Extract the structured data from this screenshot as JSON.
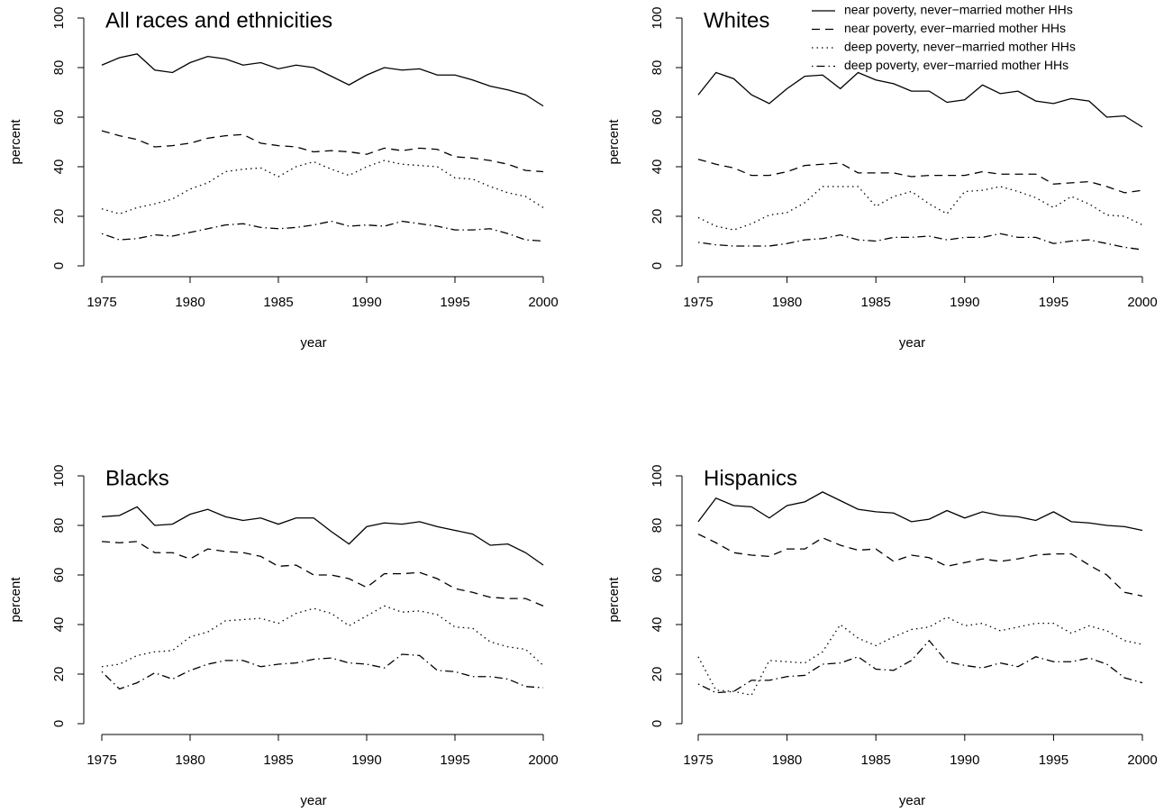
{
  "chart_data": [
    {
      "type": "line",
      "title": "All races and ethnicities",
      "x_label": "year",
      "y_label": "percent",
      "x": [
        1975,
        1976,
        1977,
        1978,
        1979,
        1980,
        1981,
        1982,
        1983,
        1984,
        1985,
        1986,
        1987,
        1988,
        1989,
        1990,
        1991,
        1992,
        1993,
        1994,
        1995,
        1996,
        1997,
        1998,
        1999,
        2000
      ],
      "xlim": [
        1975,
        2000
      ],
      "xticks": [
        1975,
        1980,
        1985,
        1990,
        1995,
        2000
      ],
      "ylim": [
        0,
        100
      ],
      "yticks": [
        0,
        20,
        40,
        60,
        80,
        100
      ],
      "series": [
        {
          "dash": "solid",
          "color": "#000000",
          "values": [
            81,
            84,
            85.5,
            79,
            78,
            82,
            84.5,
            83.5,
            81,
            82,
            79.5,
            81,
            80,
            76.5,
            73,
            77,
            80,
            79,
            79.5,
            77,
            77,
            75,
            72.5,
            71,
            69,
            64.5
          ]
        },
        {
          "dash": "dashed",
          "color": "#000000",
          "values": [
            54.5,
            52.5,
            51,
            48,
            48.5,
            49.5,
            51.5,
            52.5,
            53,
            49.5,
            48.5,
            48,
            46,
            46.5,
            46,
            45,
            47.5,
            46.5,
            47.5,
            47,
            44,
            43.5,
            42.5,
            41,
            38.5,
            38
          ]
        },
        {
          "dash": "dotted",
          "color": "#000000",
          "values": [
            23,
            21,
            23.5,
            25,
            27,
            31,
            33.5,
            38,
            39,
            39.5,
            36,
            40,
            42,
            39,
            36.5,
            40,
            42.5,
            41,
            40.5,
            40,
            35.5,
            35,
            32,
            29.5,
            28,
            23.5
          ]
        },
        {
          "dash": "dashdot",
          "color": "#000000",
          "values": [
            13,
            10.5,
            11,
            12.5,
            12,
            13.5,
            15,
            16.5,
            17,
            15.5,
            15,
            15.5,
            16.5,
            18,
            16,
            16.5,
            16,
            18,
            17,
            16,
            14.5,
            14.5,
            15,
            13,
            10.5,
            10
          ]
        }
      ]
    },
    {
      "type": "line",
      "title": "Whites",
      "x_label": "year",
      "y_label": "percent",
      "legend": "top-right",
      "x": [
        1975,
        1976,
        1977,
        1978,
        1979,
        1980,
        1981,
        1982,
        1983,
        1984,
        1985,
        1986,
        1987,
        1988,
        1989,
        1990,
        1991,
        1992,
        1993,
        1994,
        1995,
        1996,
        1997,
        1998,
        1999,
        2000
      ],
      "xlim": [
        1975,
        2000
      ],
      "xticks": [
        1975,
        1980,
        1985,
        1990,
        1995,
        2000
      ],
      "ylim": [
        0,
        100
      ],
      "yticks": [
        0,
        20,
        40,
        60,
        80,
        100
      ],
      "series": [
        {
          "name": "near poverty, never−married mother HHs",
          "dash": "solid",
          "color": "#000000",
          "values": [
            69,
            78,
            75.5,
            69,
            65.5,
            71.5,
            76.5,
            77,
            71.5,
            78,
            75,
            73.5,
            70.5,
            70.5,
            66,
            67,
            73,
            69.5,
            70.5,
            66.5,
            65.5,
            67.5,
            66.5,
            60,
            60.5,
            56
          ]
        },
        {
          "name": "near poverty, ever−married mother HHs",
          "dash": "dashed",
          "color": "#000000",
          "values": [
            43,
            41,
            39.5,
            36.5,
            36.5,
            38,
            40.5,
            41,
            41.5,
            37.5,
            37.5,
            37.5,
            36,
            36.5,
            36.5,
            36.5,
            38,
            37,
            37,
            37,
            33,
            33.5,
            34,
            32,
            29.5,
            30.5
          ]
        },
        {
          "name": "deep poverty, never−married mother HHs",
          "dash": "dotted",
          "color": "#000000",
          "values": [
            19.5,
            16,
            14.5,
            17,
            20.5,
            21.5,
            25.5,
            32,
            32,
            32,
            24,
            28,
            30,
            25,
            21,
            30,
            30.5,
            32,
            30,
            27.5,
            23.5,
            28,
            25,
            20.5,
            20,
            16.5
          ]
        },
        {
          "name": "deep poverty, ever−married mother HHs",
          "dash": "dashdot",
          "color": "#000000",
          "values": [
            9.5,
            8.5,
            8,
            8,
            8,
            9,
            10.5,
            11,
            12.5,
            10.5,
            10,
            11.5,
            11.5,
            12,
            10.5,
            11.5,
            11.5,
            13,
            11.5,
            11.5,
            9,
            10,
            10.5,
            9,
            7.5,
            6.5
          ]
        }
      ]
    },
    {
      "type": "line",
      "title": "Blacks",
      "x_label": "year",
      "y_label": "percent",
      "x": [
        1975,
        1976,
        1977,
        1978,
        1979,
        1980,
        1981,
        1982,
        1983,
        1984,
        1985,
        1986,
        1987,
        1988,
        1989,
        1990,
        1991,
        1992,
        1993,
        1994,
        1995,
        1996,
        1997,
        1998,
        1999,
        2000
      ],
      "xlim": [
        1975,
        2000
      ],
      "xticks": [
        1975,
        1980,
        1985,
        1990,
        1995,
        2000
      ],
      "ylim": [
        0,
        100
      ],
      "yticks": [
        0,
        20,
        40,
        60,
        80,
        100
      ],
      "series": [
        {
          "dash": "solid",
          "color": "#000000",
          "values": [
            83.5,
            84,
            87.5,
            80,
            80.5,
            84.5,
            86.5,
            83.5,
            82,
            83,
            80.5,
            83,
            83,
            77.5,
            72.5,
            79.5,
            81,
            80.5,
            81.5,
            79.5,
            78,
            76.5,
            72,
            72.5,
            69,
            64
          ]
        },
        {
          "dash": "dashed",
          "color": "#000000",
          "values": [
            73.5,
            73,
            73.5,
            69,
            69,
            66.5,
            70.5,
            69.5,
            69,
            67.5,
            63.5,
            64,
            60,
            60,
            58.5,
            55,
            60.5,
            60.5,
            61,
            58.5,
            54.5,
            53,
            51,
            50.5,
            50.5,
            47.5
          ]
        },
        {
          "dash": "dotted",
          "color": "#000000",
          "values": [
            23,
            24,
            27.5,
            29,
            29.5,
            35,
            37,
            41.5,
            42,
            42.5,
            40.5,
            44.5,
            46.5,
            44.5,
            39.5,
            43.5,
            47.5,
            45,
            45.5,
            44,
            39,
            38.5,
            33,
            31,
            30,
            23.5
          ]
        },
        {
          "dash": "dashdot",
          "color": "#000000",
          "values": [
            21,
            14,
            16.5,
            20.5,
            18,
            21.5,
            24,
            25.5,
            25.5,
            23,
            24,
            24.5,
            26,
            26.5,
            24.5,
            24,
            22.5,
            28,
            27.5,
            21.5,
            21,
            19,
            19,
            18,
            15,
            14.5
          ]
        }
      ]
    },
    {
      "type": "line",
      "title": "Hispanics",
      "x_label": "year",
      "y_label": "percent",
      "x": [
        1975,
        1976,
        1977,
        1978,
        1979,
        1980,
        1981,
        1982,
        1983,
        1984,
        1985,
        1986,
        1987,
        1988,
        1989,
        1990,
        1991,
        1992,
        1993,
        1994,
        1995,
        1996,
        1997,
        1998,
        1999,
        2000
      ],
      "xlim": [
        1975,
        2000
      ],
      "xticks": [
        1975,
        1980,
        1985,
        1990,
        1995,
        2000
      ],
      "ylim": [
        0,
        100
      ],
      "yticks": [
        0,
        20,
        40,
        60,
        80,
        100
      ],
      "series": [
        {
          "dash": "solid",
          "color": "#000000",
          "values": [
            81.5,
            91,
            88,
            87.5,
            83,
            88,
            89.5,
            93.5,
            90,
            86.5,
            85.5,
            85,
            81.5,
            82.5,
            86,
            83,
            85.5,
            84,
            83.5,
            82,
            85.5,
            81.5,
            81,
            80,
            79.5,
            78
          ]
        },
        {
          "dash": "dashed",
          "color": "#000000",
          "values": [
            76.5,
            73,
            69,
            68,
            67.5,
            70.5,
            70.5,
            75,
            72,
            70,
            70.5,
            65.5,
            68,
            67,
            63.5,
            65,
            66.5,
            65.5,
            66.5,
            68,
            68.5,
            68.5,
            64,
            60,
            53,
            51.5
          ]
        },
        {
          "dash": "dotted",
          "color": "#000000",
          "values": [
            27,
            13.5,
            13,
            11.5,
            25.5,
            25,
            24.5,
            29,
            40,
            34.5,
            31.5,
            35,
            38,
            39,
            43,
            39.5,
            40.5,
            37.5,
            39,
            40.5,
            40.5,
            36.5,
            39.5,
            37.5,
            33.5,
            32
          ]
        },
        {
          "dash": "dashdot",
          "color": "#000000",
          "values": [
            16,
            12.5,
            13,
            17.5,
            17.5,
            19,
            19.5,
            24,
            24.5,
            27,
            22,
            21.5,
            25.5,
            33.5,
            25,
            23.5,
            22.5,
            24.5,
            23,
            27,
            25,
            25,
            26.5,
            24,
            18.5,
            16.5
          ]
        }
      ]
    }
  ]
}
